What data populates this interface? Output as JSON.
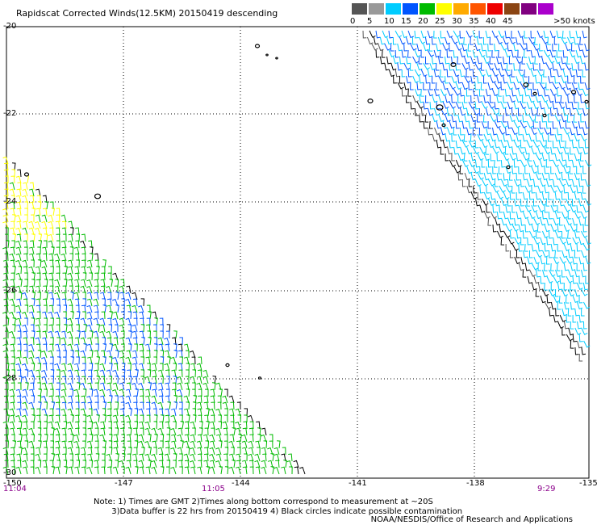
{
  "title": "Rapidscat Corrected Winds(12.5KM) 20150419 descending",
  "colorbar": {
    "swatches": [
      {
        "label": "0",
        "color": "#555555"
      },
      {
        "label": "5",
        "color": "#999999"
      },
      {
        "label": "10",
        "color": "#00ccff"
      },
      {
        "label": "15",
        "color": "#0055ff"
      },
      {
        "label": "20",
        "color": "#00bb00"
      },
      {
        "label": "25",
        "color": "#ffff00"
      },
      {
        "label": "30",
        "color": "#ffaa00"
      },
      {
        "label": "35",
        "color": "#ff5500"
      },
      {
        "label": "40",
        "color": "#ee0000"
      },
      {
        "label": "45",
        "color": "#8b4513"
      },
      {
        "label": "",
        "color": "#800080"
      },
      {
        "label": "",
        "color": "#aa00cc"
      }
    ],
    "max_label": ">50 knots"
  },
  "map": {
    "lat_labels": [
      "-20",
      "-22",
      "-24",
      "-26",
      "-28",
      "-30"
    ],
    "lon_labels": [
      "-150",
      "-147",
      "-144",
      "-141",
      "-138",
      "-135"
    ],
    "time_labels": [
      "11:04",
      "11:05",
      "9:29"
    ],
    "grid_lines": "dotted",
    "land_color": "#000000"
  },
  "notes": {
    "line1": "Note: 1) Times are GMT 2)Times along bottom correspond to measurement at ~20S",
    "line2": "       3)Data buffer is 22 hrs from 20150419 4) Black circles indicate possible contamination"
  },
  "credit": "NOAA/NESDIS/Office of Research and Applications"
}
